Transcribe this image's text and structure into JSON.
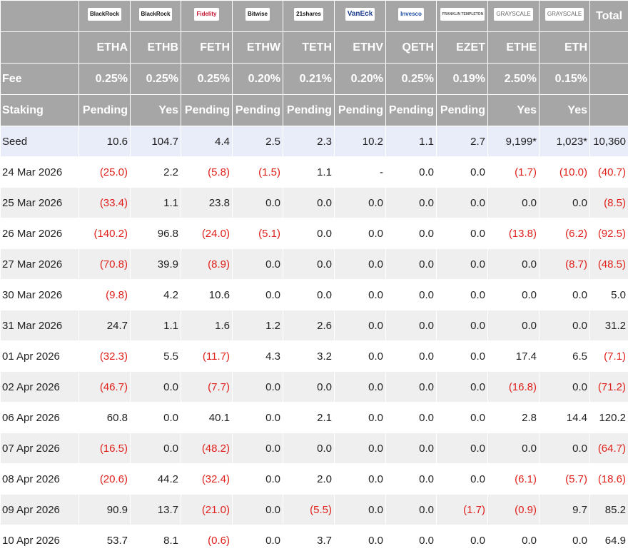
{
  "header": {
    "logos": [
      "BlackRock",
      "BlackRock",
      "Fidelity",
      "Bitwise",
      "21shares",
      "VanEck",
      "Invesco",
      "FRANKLIN TEMPLETON",
      "GRAYSCALE",
      "GRAYSCALE"
    ],
    "total": "Total",
    "tickers": [
      "ETHA",
      "ETHB",
      "FETH",
      "ETHW",
      "TETH",
      "ETHV",
      "QETH",
      "EZET",
      "ETHE",
      "ETH"
    ]
  },
  "fee": {
    "label": "Fee",
    "values": [
      "0.25%",
      "0.25%",
      "0.25%",
      "0.20%",
      "0.21%",
      "0.20%",
      "0.25%",
      "0.19%",
      "2.50%",
      "0.15%"
    ]
  },
  "staking": {
    "label": "Staking",
    "values": [
      "Pending",
      "Yes",
      "Pending",
      "Pending",
      "Pending",
      "Pending",
      "Pending",
      "Pending",
      "Yes",
      "Yes"
    ]
  },
  "rows": [
    {
      "label": "Seed",
      "cells": [
        "10.6",
        "104.7",
        "4.4",
        "2.5",
        "2.3",
        "10.2",
        "1.1",
        "2.7",
        "9,199*",
        "1,023*",
        "10,360"
      ]
    },
    {
      "label": "24 Mar 2026",
      "cells": [
        "(25.0)",
        "2.2",
        "(5.8)",
        "(1.5)",
        "1.1",
        "-",
        "0.0",
        "0.0",
        "(1.7)",
        "(10.0)",
        "(40.7)"
      ]
    },
    {
      "label": "25 Mar 2026",
      "cells": [
        "(33.4)",
        "1.1",
        "23.8",
        "0.0",
        "0.0",
        "0.0",
        "0.0",
        "0.0",
        "0.0",
        "0.0",
        "(8.5)"
      ]
    },
    {
      "label": "26 Mar 2026",
      "cells": [
        "(140.2)",
        "96.8",
        "(24.0)",
        "(5.1)",
        "0.0",
        "0.0",
        "0.0",
        "0.0",
        "(13.8)",
        "(6.2)",
        "(92.5)"
      ]
    },
    {
      "label": "27 Mar 2026",
      "cells": [
        "(70.8)",
        "39.9",
        "(8.9)",
        "0.0",
        "0.0",
        "0.0",
        "0.0",
        "0.0",
        "0.0",
        "(8.7)",
        "(48.5)"
      ]
    },
    {
      "label": "30 Mar 2026",
      "cells": [
        "(9.8)",
        "4.2",
        "10.6",
        "0.0",
        "0.0",
        "0.0",
        "0.0",
        "0.0",
        "0.0",
        "0.0",
        "5.0"
      ]
    },
    {
      "label": "31 Mar 2026",
      "cells": [
        "24.7",
        "1.1",
        "1.6",
        "1.2",
        "2.6",
        "0.0",
        "0.0",
        "0.0",
        "0.0",
        "0.0",
        "31.2"
      ]
    },
    {
      "label": "01 Apr 2026",
      "cells": [
        "(32.3)",
        "5.5",
        "(11.7)",
        "4.3",
        "3.2",
        "0.0",
        "0.0",
        "0.0",
        "17.4",
        "6.5",
        "(7.1)"
      ]
    },
    {
      "label": "02 Apr 2026",
      "cells": [
        "(46.7)",
        "0.0",
        "(7.7)",
        "0.0",
        "0.0",
        "0.0",
        "0.0",
        "0.0",
        "(16.8)",
        "0.0",
        "(71.2)"
      ]
    },
    {
      "label": "06 Apr 2026",
      "cells": [
        "60.8",
        "0.0",
        "40.1",
        "0.0",
        "2.1",
        "0.0",
        "0.0",
        "0.0",
        "2.8",
        "14.4",
        "120.2"
      ]
    },
    {
      "label": "07 Apr 2026",
      "cells": [
        "(16.5)",
        "0.0",
        "(48.2)",
        "0.0",
        "0.0",
        "0.0",
        "0.0",
        "0.0",
        "0.0",
        "0.0",
        "(64.7)"
      ]
    },
    {
      "label": "08 Apr 2026",
      "cells": [
        "(20.6)",
        "44.2",
        "(32.4)",
        "0.0",
        "2.0",
        "0.0",
        "0.0",
        "0.0",
        "(6.1)",
        "(5.7)",
        "(18.6)"
      ]
    },
    {
      "label": "09 Apr 2026",
      "cells": [
        "90.9",
        "13.7",
        "(21.0)",
        "0.0",
        "(5.5)",
        "0.0",
        "0.0",
        "(1.7)",
        "(0.9)",
        "9.7",
        "85.2"
      ]
    },
    {
      "label": "10 Apr 2026",
      "cells": [
        "53.7",
        "8.1",
        "(0.6)",
        "0.0",
        "3.7",
        "0.0",
        "0.0",
        "0.0",
        "0.0",
        "0.0",
        "64.9"
      ]
    }
  ]
}
